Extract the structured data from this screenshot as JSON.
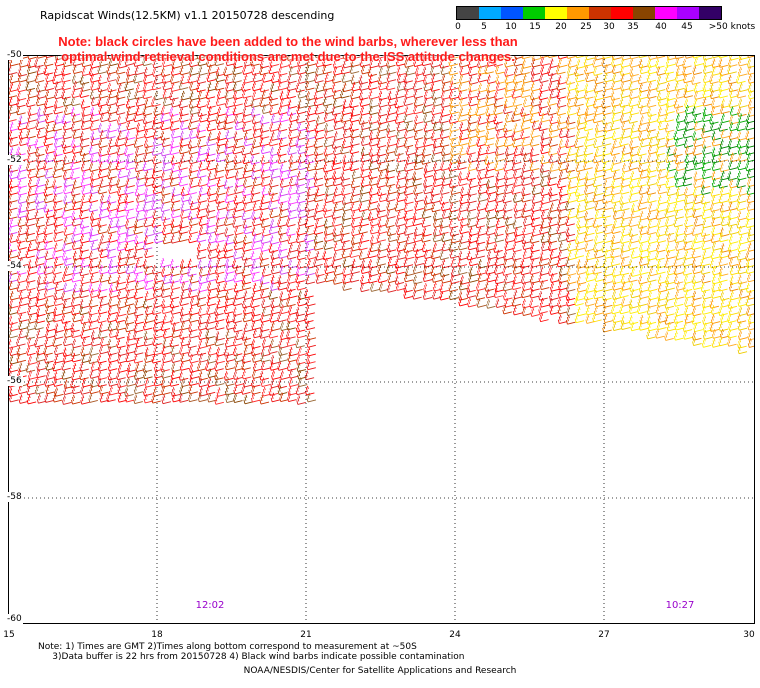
{
  "title": "Rapidscat Winds(12.5KM) v1.1 20150728 descending",
  "note_line1": "Note: black circles have been added to the wind barbs, wherever less than",
  "note_line2": "optimal wind retrieval conditions are met due to the ISS attitude changes.",
  "legend": {
    "colors": [
      "#444444",
      "#00aaff",
      "#0055ff",
      "#00cc00",
      "#ffff00",
      "#ff9900",
      "#cc3300",
      "#ff0000",
      "#884400",
      "#ff00ff",
      "#aa00ff",
      "#330066"
    ],
    "labels": [
      "0",
      "5",
      "10",
      "15",
      "20",
      "25",
      "30",
      "35",
      "40",
      "45",
      ">50 knots"
    ]
  },
  "axes": {
    "lat_labels": [
      "-50",
      "-52",
      "-54",
      "-56",
      "-58",
      "-60"
    ],
    "lon_labels": [
      "15",
      "18",
      "21",
      "24",
      "27",
      "30"
    ]
  },
  "times": [
    "12:02",
    "10:27"
  ],
  "footnote_line1": "Note: 1) Times are GMT 2)Times along bottom correspond to measurement at ~50S",
  "footnote_line2": "     3)Data buffer is 22 hrs from 20150728 4) Black wind barbs indicate possible contamination",
  "credit": "NOAA/NESDIS/Center for Satellite Applications and Research"
}
